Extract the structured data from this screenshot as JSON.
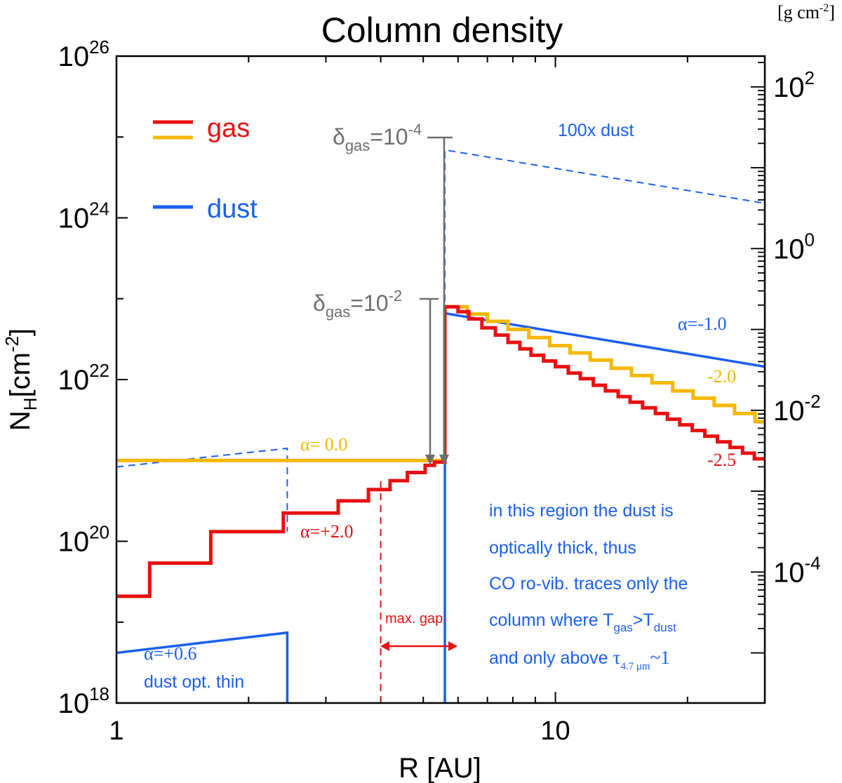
{
  "chart_data": {
    "type": "line",
    "title": "Column density",
    "xlabel": "R [AU]",
    "ylabel_main": "N",
    "ylabel_sub": "H",
    "ylabel_unit": "[cm",
    "ylabel_unit_exp": "-2",
    "ylabel_close": "]",
    "right_unit": "[g cm",
    "right_unit_exp": "-2",
    "right_unit_close": "]",
    "x_scale": "log",
    "y_scale": "log",
    "xlim": [
      1,
      30
    ],
    "ylim_log10": [
      18,
      26
    ],
    "x_ticks": [
      {
        "value": 1,
        "label": "1"
      },
      {
        "value": 10,
        "label": "10"
      }
    ],
    "y_ticks": [
      {
        "exp": 18,
        "base": "10",
        "sup": "18"
      },
      {
        "exp": 20,
        "base": "10",
        "sup": "20"
      },
      {
        "exp": 22,
        "base": "10",
        "sup": "22"
      },
      {
        "exp": 24,
        "base": "10",
        "sup": "24"
      },
      {
        "exp": 26,
        "base": "10",
        "sup": "26"
      }
    ],
    "right_ticks": [
      {
        "exp": 2,
        "base": "10",
        "sup": "2"
      },
      {
        "exp": 0,
        "base": "10",
        "sup": "0"
      },
      {
        "exp": -2,
        "base": "10",
        "sup": "-2"
      },
      {
        "exp": -4,
        "base": "10",
        "sup": "-4"
      }
    ],
    "right_axis_log_g_at_NH20": -3.62,
    "legend": [
      {
        "label": "gas",
        "colors": [
          "#e81010",
          "#f5b800"
        ]
      },
      {
        "label": "dust",
        "colors": [
          "#1a5ff0"
        ]
      }
    ],
    "colors": {
      "gas_red": "#e81010",
      "gas_yellow": "#f5b800",
      "dust": "#1a5ff0",
      "gray": "#6e6e6e"
    },
    "series": [
      {
        "name": "gas alpha=+2.0 / -2.5",
        "color": "#e81010",
        "points": [
          [
            1,
            19.32
          ],
          [
            1.19,
            19.32
          ],
          [
            1.19,
            19.73
          ],
          [
            1.64,
            19.73
          ],
          [
            1.64,
            20.12
          ],
          [
            2.4,
            20.12
          ],
          [
            2.4,
            20.35
          ],
          [
            3.2,
            20.35
          ],
          [
            3.2,
            20.5
          ],
          [
            3.75,
            20.5
          ],
          [
            3.75,
            20.64
          ],
          [
            4.2,
            20.64
          ],
          [
            4.2,
            20.75
          ],
          [
            4.6,
            20.75
          ],
          [
            4.6,
            20.85
          ],
          [
            5.05,
            20.85
          ],
          [
            5.05,
            20.94
          ],
          [
            5.3,
            20.94
          ],
          [
            5.3,
            20.98
          ],
          [
            5.6,
            20.98
          ],
          [
            5.6,
            22.9
          ],
          [
            6.0,
            22.9
          ],
          [
            6.0,
            22.84
          ],
          [
            6.35,
            22.84
          ],
          [
            6.35,
            22.75
          ],
          [
            6.8,
            22.75
          ],
          [
            6.8,
            22.64
          ],
          [
            7.3,
            22.64
          ],
          [
            7.3,
            22.55
          ],
          [
            7.8,
            22.55
          ],
          [
            7.8,
            22.46
          ],
          [
            8.3,
            22.46
          ],
          [
            8.3,
            22.38
          ],
          [
            8.8,
            22.38
          ],
          [
            8.8,
            22.3
          ],
          [
            9.4,
            22.3
          ],
          [
            9.4,
            22.23
          ],
          [
            10.0,
            22.23
          ],
          [
            10.0,
            22.16
          ],
          [
            10.7,
            22.16
          ],
          [
            10.7,
            22.08
          ],
          [
            11.4,
            22.08
          ],
          [
            11.4,
            22.01
          ],
          [
            12.2,
            22.01
          ],
          [
            12.2,
            21.93
          ],
          [
            13.0,
            21.93
          ],
          [
            13.0,
            21.86
          ],
          [
            13.9,
            21.86
          ],
          [
            13.9,
            21.79
          ],
          [
            14.8,
            21.79
          ],
          [
            14.8,
            21.72
          ],
          [
            15.8,
            21.72
          ],
          [
            15.8,
            21.65
          ],
          [
            16.9,
            21.65
          ],
          [
            16.9,
            21.58
          ],
          [
            18.0,
            21.58
          ],
          [
            18.0,
            21.51
          ],
          [
            19.2,
            21.51
          ],
          [
            19.2,
            21.44
          ],
          [
            20.5,
            21.44
          ],
          [
            20.5,
            21.37
          ],
          [
            21.9,
            21.37
          ],
          [
            21.9,
            21.3
          ],
          [
            23.4,
            21.3
          ],
          [
            23.4,
            21.23
          ],
          [
            25.0,
            21.23
          ],
          [
            25.0,
            21.16
          ],
          [
            26.7,
            21.16
          ],
          [
            26.7,
            21.09
          ],
          [
            28.4,
            21.09
          ],
          [
            28.4,
            21.02
          ],
          [
            30,
            21.02
          ]
        ]
      },
      {
        "name": "gas alpha=0.0 / -2.0",
        "color": "#f5b800",
        "points": [
          [
            1,
            21.0
          ],
          [
            5.6,
            21.0
          ],
          [
            5.6,
            22.9
          ],
          [
            6.3,
            22.9
          ],
          [
            6.3,
            22.81
          ],
          [
            7.0,
            22.81
          ],
          [
            7.0,
            22.72
          ],
          [
            7.8,
            22.72
          ],
          [
            7.8,
            22.62
          ],
          [
            8.7,
            22.62
          ],
          [
            8.7,
            22.52
          ],
          [
            9.7,
            22.52
          ],
          [
            9.7,
            22.42
          ],
          [
            10.8,
            22.42
          ],
          [
            10.8,
            22.33
          ],
          [
            12.0,
            22.33
          ],
          [
            12.0,
            22.24
          ],
          [
            13.4,
            22.24
          ],
          [
            13.4,
            22.14
          ],
          [
            14.9,
            22.14
          ],
          [
            14.9,
            22.05
          ],
          [
            16.6,
            22.05
          ],
          [
            16.6,
            21.96
          ],
          [
            18.5,
            21.96
          ],
          [
            18.5,
            21.86
          ],
          [
            20.6,
            21.86
          ],
          [
            20.6,
            21.77
          ],
          [
            23.0,
            21.77
          ],
          [
            23.0,
            21.68
          ],
          [
            25.6,
            21.68
          ],
          [
            25.6,
            21.58
          ],
          [
            28.5,
            21.58
          ],
          [
            28.5,
            21.48
          ],
          [
            30,
            21.48
          ]
        ]
      },
      {
        "name": "dust alpha=+0.6",
        "color": "#1a5ff0",
        "points": [
          [
            1,
            18.62
          ],
          [
            2.45,
            18.87
          ],
          [
            2.45,
            18.0
          ]
        ]
      },
      {
        "name": "dust alpha=-1.0",
        "color": "#1a5ff0",
        "points": [
          [
            5.6,
            18.0
          ],
          [
            5.6,
            22.82
          ],
          [
            30,
            22.16
          ]
        ]
      },
      {
        "name": "100x dust",
        "color": "#1a5ff0",
        "dashed": true,
        "points": [
          [
            1,
            20.92
          ],
          [
            2.45,
            21.15
          ],
          [
            2.45,
            20.12
          ]
        ]
      },
      {
        "name": "100x dust outer",
        "color": "#1a5ff0",
        "dashed": true,
        "points": [
          [
            5.6,
            22.82
          ],
          [
            5.6,
            24.84
          ],
          [
            30,
            24.18
          ]
        ]
      },
      {
        "name": "max gap marker",
        "color": "#e81010",
        "dashed": true,
        "points": [
          [
            4.0,
            18.0
          ],
          [
            4.0,
            20.75
          ]
        ]
      }
    ],
    "annotations": {
      "delta_gas_1": "δ",
      "delta_gas_1_sub": "gas",
      "delta_gas_1_val": "=10",
      "delta_gas_1_exp": "-4",
      "delta_gas_2": "δ",
      "delta_gas_2_sub": "gas",
      "delta_gas_2_val": "=10",
      "delta_gas_2_exp": "-2",
      "hundred_dust": "100x dust",
      "alpha_dust_outer": "α=-1.0",
      "alpha_gas_yellow_outer": "-2.0",
      "alpha_gas_red_outer": "-2.5",
      "alpha_gas_yellow_inner": "α= 0.0",
      "alpha_gas_red_inner": "α=+2.0",
      "max_gap": "max. gap",
      "alpha_dust_inner": "α=+0.6",
      "dust_thin": "dust opt. thin",
      "region_line1": "in this region the dust is",
      "region_line2": "optically thick, thus",
      "region_line3": "CO ro-vib. traces only the",
      "region_line4a": "column where T",
      "region_line4b": "gas",
      "region_line4c": ">T",
      "region_line4d": "dust",
      "region_line5a": "and only above ",
      "region_line5b": "τ",
      "region_line5c": "4.7 μm",
      "region_line5d": "~1"
    }
  }
}
